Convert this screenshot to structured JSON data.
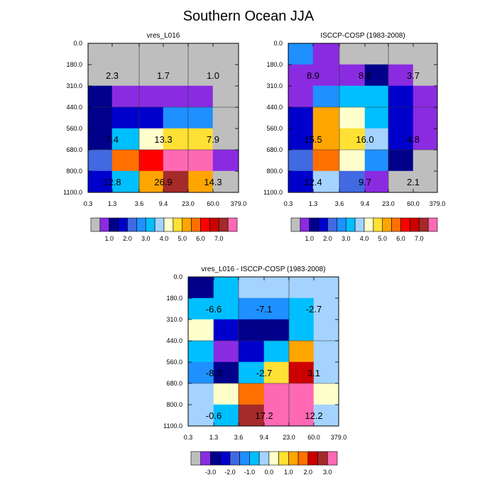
{
  "title": "Southern Ocean JJA",
  "palettes": {
    "absolute": [
      "#bebebe",
      "#8a2be2",
      "#00008b",
      "#0000cd",
      "#4169e1",
      "#1e90ff",
      "#00bfff",
      "#a4d3ff",
      "#ffffcc",
      "#ffe034",
      "#ffa500",
      "#ff7000",
      "#ff0000",
      "#cc0000",
      "#a52a2a",
      "#ff69b4"
    ],
    "difference": [
      "#bebebe",
      "#8a2be2",
      "#00008b",
      "#0000cd",
      "#4169e1",
      "#1e90ff",
      "#00bfff",
      "#a4d3ff",
      "#ffffcc",
      "#ffe034",
      "#ffa500",
      "#ff7000",
      "#cc0000",
      "#a52a2a",
      "#ff69b4"
    ]
  },
  "chart_data": [
    {
      "type": "heatmap",
      "title": "vres_L016",
      "xlabel": "",
      "ylabel": "",
      "x_ticks": [
        "0.3",
        "1.3",
        "3.6",
        "9.4",
        "23.0",
        "60.0",
        "379.0"
      ],
      "y_ticks": [
        "0.0",
        "180.0",
        "310.0",
        "440.0",
        "560.0",
        "680.0",
        "800.0",
        "1100.0"
      ],
      "cell_colors": [
        [
          0,
          0,
          0,
          0,
          0,
          0
        ],
        [
          0,
          0,
          0,
          0,
          0,
          0
        ],
        [
          2,
          1,
          1,
          1,
          1,
          0
        ],
        [
          2,
          3,
          3,
          5,
          5,
          0
        ],
        [
          2,
          6,
          8,
          9,
          9,
          0
        ],
        [
          4,
          11,
          12,
          15,
          15,
          1
        ],
        [
          3,
          6,
          10,
          14,
          10,
          0
        ]
      ],
      "annotations": [
        {
          "row": 1,
          "col_left": 0,
          "value": "2.3"
        },
        {
          "row": 1,
          "col_left": 2,
          "value": "1.7"
        },
        {
          "row": 1,
          "col_left": 4,
          "value": "1.0"
        },
        {
          "row": 4,
          "col_left": 0,
          "value": "7.4"
        },
        {
          "row": 4,
          "col_left": 2,
          "value": "13.3"
        },
        {
          "row": 4,
          "col_left": 4,
          "value": "7.9"
        },
        {
          "row": 6,
          "col_left": 0,
          "value": "12.8"
        },
        {
          "row": 6,
          "col_left": 2,
          "value": "26.9"
        },
        {
          "row": 6,
          "col_left": 4,
          "value": "14.3"
        }
      ],
      "colorbar_labels": [
        "1.0",
        "2.0",
        "3.0",
        "4.0",
        "5.0",
        "6.0",
        "7.0"
      ],
      "palette": "absolute"
    },
    {
      "type": "heatmap",
      "title": "ISCCP-COSP (1983-2008)",
      "xlabel": "",
      "ylabel": "",
      "x_ticks": [
        "0.3",
        "1.3",
        "3.6",
        "9.4",
        "23.0",
        "60.0",
        "379.0"
      ],
      "y_ticks": [
        "0.0",
        "180.0",
        "310.0",
        "440.0",
        "560.0",
        "680.0",
        "800.0",
        "1100.0"
      ],
      "cell_colors": [
        [
          5,
          1,
          0,
          0,
          0,
          0
        ],
        [
          1,
          1,
          1,
          2,
          1,
          0
        ],
        [
          1,
          5,
          6,
          6,
          3,
          1
        ],
        [
          3,
          10,
          8,
          6,
          3,
          1
        ],
        [
          3,
          10,
          9,
          7,
          3,
          1
        ],
        [
          4,
          11,
          8,
          5,
          2,
          0
        ],
        [
          3,
          7,
          4,
          1,
          0,
          0
        ]
      ],
      "annotations": [
        {
          "row": 1,
          "col_left": 0,
          "value": "8.9"
        },
        {
          "row": 1,
          "col_left": 2,
          "value": "8.8"
        },
        {
          "row": 1,
          "col_left": 4,
          "value": "3.7"
        },
        {
          "row": 4,
          "col_left": 0,
          "value": "15.5"
        },
        {
          "row": 4,
          "col_left": 2,
          "value": "16.0"
        },
        {
          "row": 4,
          "col_left": 4,
          "value": "4.8"
        },
        {
          "row": 6,
          "col_left": 0,
          "value": "12.4"
        },
        {
          "row": 6,
          "col_left": 2,
          "value": "9.7"
        },
        {
          "row": 6,
          "col_left": 4,
          "value": "2.1"
        }
      ],
      "colorbar_labels": [
        "1.0",
        "2.0",
        "3.0",
        "4.0",
        "5.0",
        "6.0",
        "7.0"
      ],
      "palette": "absolute"
    },
    {
      "type": "heatmap",
      "title": "vres_L016 - ISCCP-COSP (1983-2008)",
      "xlabel": "",
      "ylabel": "",
      "x_ticks": [
        "0.3",
        "1.3",
        "3.6",
        "9.4",
        "23.0",
        "60.0",
        "379.0"
      ],
      "y_ticks": [
        "0.0",
        "180.0",
        "310.0",
        "440.0",
        "560.0",
        "680.0",
        "800.0",
        "1100.0"
      ],
      "cell_colors": [
        [
          2,
          6,
          7,
          7,
          7,
          7
        ],
        [
          6,
          6,
          5,
          5,
          6,
          7
        ],
        [
          8,
          3,
          2,
          2,
          6,
          7
        ],
        [
          6,
          1,
          3,
          6,
          10,
          7
        ],
        [
          5,
          2,
          6,
          9,
          12,
          7
        ],
        [
          7,
          8,
          11,
          14,
          14,
          8
        ],
        [
          7,
          6,
          13,
          14,
          14,
          7
        ]
      ],
      "annotations": [
        {
          "row": 1,
          "col_left": 0,
          "value": "-6.6"
        },
        {
          "row": 1,
          "col_left": 2,
          "value": "-7.1"
        },
        {
          "row": 1,
          "col_left": 4,
          "value": "-2.7"
        },
        {
          "row": 4,
          "col_left": 0,
          "value": "-8.0"
        },
        {
          "row": 4,
          "col_left": 2,
          "value": "-2.7"
        },
        {
          "row": 4,
          "col_left": 4,
          "value": "3.1"
        },
        {
          "row": 6,
          "col_left": 0,
          "value": "-0.6"
        },
        {
          "row": 6,
          "col_left": 2,
          "value": "17.2"
        },
        {
          "row": 6,
          "col_left": 4,
          "value": "12.2"
        }
      ],
      "colorbar_labels": [
        "-3.0",
        "-2.0",
        "-1.0",
        "0.0",
        "1.0",
        "2.0",
        "3.0"
      ],
      "palette": "difference"
    }
  ]
}
